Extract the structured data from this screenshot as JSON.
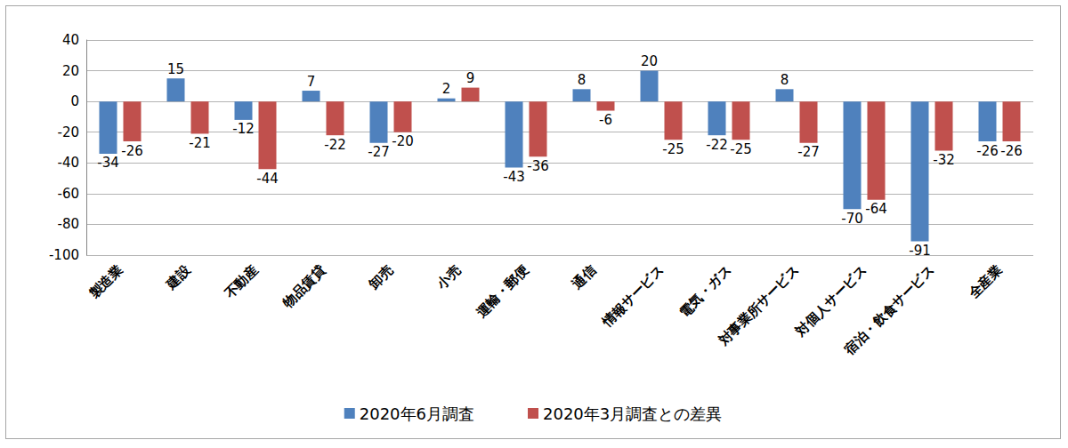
{
  "chart_data": {
    "type": "bar",
    "categories": [
      "製造業",
      "建設",
      "不動産",
      "物品賃貸",
      "卸売",
      "小売",
      "運輸・郵便",
      "通信",
      "情報サービス",
      "電気・ガス",
      "対事業所サービス",
      "対個人サービス",
      "宿泊・飲食サービス",
      "全産業"
    ],
    "series": [
      {
        "name": "2020年6月調査",
        "color": "#4f81bd",
        "values": [
          -34,
          15,
          -12,
          7,
          -27,
          2,
          -43,
          8,
          20,
          -22,
          8,
          -70,
          -91,
          -26
        ]
      },
      {
        "name": "2020年3月調査との差異",
        "color": "#c0504d",
        "values": [
          -26,
          -21,
          -44,
          -22,
          -20,
          9,
          -36,
          -6,
          -25,
          -25,
          -27,
          -64,
          -32,
          -26
        ]
      }
    ],
    "ylim": [
      -100,
      40
    ],
    "yticks": [
      -100,
      -80,
      -60,
      -40,
      -20,
      0,
      20,
      40
    ],
    "grid": true,
    "legend": "bottom",
    "data_labels": true
  }
}
